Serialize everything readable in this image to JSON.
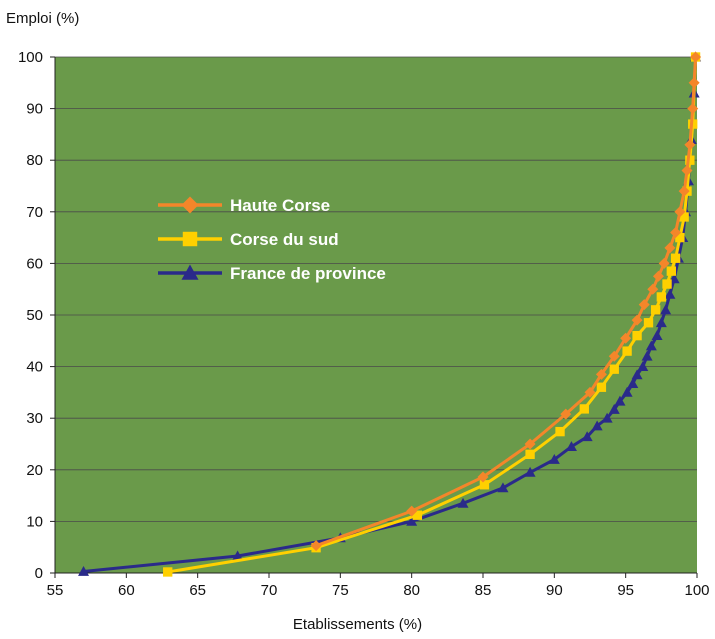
{
  "chart_data": {
    "type": "line",
    "xlabel": "Etablissements (%)",
    "ylabel": "Emploi (%)",
    "xlim": [
      55,
      100
    ],
    "ylim": [
      0,
      100
    ],
    "xticks": [
      55,
      60,
      65,
      70,
      75,
      80,
      85,
      90,
      95,
      100
    ],
    "yticks": [
      0,
      10,
      20,
      30,
      40,
      50,
      60,
      70,
      80,
      90,
      100
    ],
    "grid": true,
    "legend_position": "inside-upper-left",
    "plot_background": "#6a9a4a",
    "series": [
      {
        "name": "Haute Corse",
        "color": "#f4862a",
        "marker": "diamond",
        "points": [
          [
            73.3,
            5.3
          ],
          [
            80,
            12
          ],
          [
            85,
            18.6
          ],
          [
            88.3,
            25
          ],
          [
            90.8,
            30.8
          ],
          [
            92.5,
            35
          ],
          [
            93.3,
            38.5
          ],
          [
            94.2,
            42
          ],
          [
            95,
            45.5
          ],
          [
            95.8,
            49
          ],
          [
            96.3,
            52
          ],
          [
            96.9,
            55
          ],
          [
            97.3,
            57.5
          ],
          [
            97.7,
            60
          ],
          [
            98.1,
            63
          ],
          [
            98.5,
            66
          ],
          [
            98.8,
            70
          ],
          [
            99.1,
            74
          ],
          [
            99.3,
            78
          ],
          [
            99.5,
            83
          ],
          [
            99.7,
            90
          ],
          [
            99.8,
            95
          ],
          [
            99.9,
            100
          ]
        ]
      },
      {
        "name": "Corse du sud",
        "color": "#ffd000",
        "marker": "square",
        "points": [
          [
            62.9,
            0.2
          ],
          [
            73.3,
            4.9
          ],
          [
            80.4,
            11.2
          ],
          [
            85.1,
            17.1
          ],
          [
            88.3,
            23
          ],
          [
            90.4,
            27.4
          ],
          [
            92.1,
            31.8
          ],
          [
            93.3,
            36
          ],
          [
            94.2,
            39.5
          ],
          [
            95.1,
            43
          ],
          [
            95.8,
            46
          ],
          [
            96.6,
            48.5
          ],
          [
            97.1,
            51
          ],
          [
            97.5,
            53.5
          ],
          [
            97.9,
            56
          ],
          [
            98.2,
            58.5
          ],
          [
            98.5,
            61
          ],
          [
            98.8,
            65
          ],
          [
            99.1,
            69
          ],
          [
            99.3,
            74
          ],
          [
            99.5,
            80
          ],
          [
            99.7,
            87
          ],
          [
            99.9,
            100
          ]
        ]
      },
      {
        "name": "France de province",
        "color": "#2a2a8a",
        "marker": "triangle",
        "points": [
          [
            57,
            0.3
          ],
          [
            67.8,
            3.3
          ],
          [
            75,
            6.8
          ],
          [
            80,
            10
          ],
          [
            83.6,
            13.5
          ],
          [
            86.4,
            16.5
          ],
          [
            88.3,
            19.5
          ],
          [
            90,
            22
          ],
          [
            91.2,
            24.5
          ],
          [
            92.3,
            26.4
          ],
          [
            93,
            28.5
          ],
          [
            93.7,
            30
          ],
          [
            94.2,
            31.7
          ],
          [
            94.6,
            33.3
          ],
          [
            95.1,
            35
          ],
          [
            95.5,
            36.7
          ],
          [
            95.8,
            38.4
          ],
          [
            96.2,
            40
          ],
          [
            96.5,
            42
          ],
          [
            96.8,
            44
          ],
          [
            97.2,
            46
          ],
          [
            97.5,
            48.5
          ],
          [
            97.8,
            51
          ],
          [
            98.1,
            54
          ],
          [
            98.4,
            57
          ],
          [
            98.7,
            61
          ],
          [
            99,
            65
          ],
          [
            99.2,
            70
          ],
          [
            99.4,
            76
          ],
          [
            99.6,
            84
          ],
          [
            99.8,
            93
          ],
          [
            99.9,
            100
          ]
        ]
      }
    ]
  }
}
